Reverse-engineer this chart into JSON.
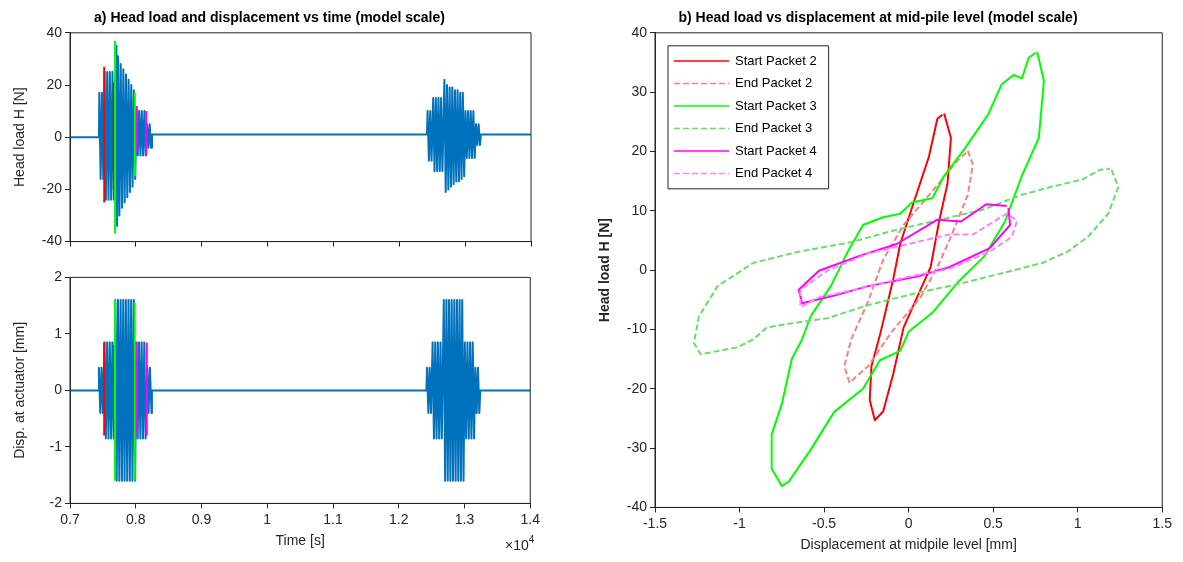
{
  "chart_data": [
    {
      "type": "line",
      "title": "a) Head load and displacement vs time (model scale)",
      "ylabel": "Head load H [N]",
      "xlim": [
        0.7,
        1.4
      ],
      "xticks": [
        0.7,
        0.8,
        0.9,
        1,
        1.1,
        1.2,
        1.3,
        1.4
      ],
      "ylim": [
        -40,
        40
      ],
      "yticks": [
        -40,
        -20,
        0,
        20,
        40
      ],
      "tick_labels": "y",
      "marker": "none",
      "legend": false,
      "series": [
        {
          "color": "#0072bd",
          "x": [
            0.7,
            0.744,
            0.7445,
            0.7465,
            0.7485,
            0.7505,
            0.7525,
            0.7545,
            0.7565,
            0.7585,
            0.7605,
            0.7625,
            0.7645,
            0.7665,
            0.7705,
            0.7715,
            0.773,
            0.775,
            0.777,
            0.779,
            0.781,
            0.783,
            0.785,
            0.787,
            0.789,
            0.791,
            0.793,
            0.795,
            0.797,
            0.799,
            0.801,
            0.803,
            0.805,
            0.807,
            0.809,
            0.811,
            0.813,
            0.815,
            0.817,
            0.819,
            0.821,
            0.823,
            0.8245,
            1.242,
            1.243,
            1.245,
            1.247,
            1.249,
            1.2515,
            1.2535,
            1.2555,
            1.2575,
            1.2595,
            1.2615,
            1.2635,
            1.2655,
            1.2685,
            1.2705,
            1.2725,
            1.2745,
            1.2765,
            1.2785,
            1.2805,
            1.2825,
            1.2845,
            1.2865,
            1.2885,
            1.2905,
            1.2925,
            1.2945,
            1.2965,
            1.2985,
            1.3005,
            1.3025,
            1.3045,
            1.3065,
            1.3085,
            1.3105,
            1.3125,
            1.3145,
            1.3165,
            1.3185,
            1.3205,
            1.3225,
            1.324,
            1.4
          ],
          "values": [
            0,
            0,
            17,
            -16,
            17,
            -16,
            25,
            -24,
            25,
            -24,
            25,
            -24,
            25,
            -24,
            35,
            -34,
            31,
            -30,
            28,
            -27,
            26,
            -25,
            24,
            -23,
            22,
            -21,
            20,
            -19,
            18,
            -16,
            10,
            -7,
            10,
            -7,
            10,
            -7,
            10,
            -7,
            5,
            -4,
            5,
            -4,
            1,
            1,
            10,
            -9,
            10,
            -9,
            15,
            -13,
            15,
            -13,
            15,
            -13,
            15,
            -13,
            22,
            -21,
            20,
            -20,
            19,
            -19,
            19,
            -18,
            18,
            -17,
            18,
            -17,
            17,
            -16,
            17,
            -15,
            10,
            -8,
            10,
            -8,
            10,
            -8,
            10,
            -8,
            5,
            -3,
            5,
            -3,
            1,
            1
          ]
        },
        {
          "color": "#ff0000",
          "x": [
            0.752,
            0.752,
            0.76,
            0.7665,
            0.7665
          ],
          "values": [
            -25,
            27,
            null,
            -20,
            21
          ]
        },
        {
          "color": "#00ff00",
          "x": [
            0.7684,
            0.7684,
            0.784,
            0.7985,
            0.7985
          ],
          "values": [
            -37,
            37,
            null,
            -15,
            17
          ]
        },
        {
          "color": "#ff00ff",
          "x": [
            0.8015,
            0.8015,
            0.808,
            0.8158,
            0.8158
          ],
          "values": [
            -6,
            12,
            null,
            -7,
            10
          ]
        }
      ]
    },
    {
      "type": "line",
      "ylabel": "Disp. at actuator [mm]",
      "xlabel": "Time [s]",
      "annotations": [
        "×10$^{4}$"
      ],
      "xlim": [
        0.7,
        1.4
      ],
      "xticks": [
        0.7,
        0.8,
        0.9,
        1,
        1.1,
        1.2,
        1.3,
        1.4
      ],
      "ylim": [
        -2,
        2
      ],
      "yticks": [
        -2,
        -1,
        0,
        1,
        2
      ],
      "marker": "none",
      "legend": false,
      "series": [
        {
          "color": "#0072bd",
          "x": [
            0.7,
            0.7435,
            0.744,
            0.746,
            0.748,
            0.75,
            0.7525,
            0.7545,
            0.7565,
            0.7585,
            0.7605,
            0.7625,
            0.7645,
            0.7665,
            0.769,
            0.771,
            0.773,
            0.775,
            0.777,
            0.779,
            0.781,
            0.783,
            0.785,
            0.787,
            0.789,
            0.791,
            0.793,
            0.795,
            0.797,
            0.799,
            0.801,
            0.803,
            0.805,
            0.807,
            0.809,
            0.811,
            0.813,
            0.815,
            0.8175,
            0.8195,
            0.8215,
            0.824,
            0.8246,
            1.242,
            1.243,
            1.245,
            1.247,
            1.249,
            1.2515,
            1.2535,
            1.2555,
            1.2575,
            1.2595,
            1.2615,
            1.2635,
            1.2655,
            1.2685,
            1.2705,
            1.2725,
            1.2745,
            1.2765,
            1.2785,
            1.2805,
            1.2825,
            1.2845,
            1.2865,
            1.2885,
            1.2905,
            1.2925,
            1.2945,
            1.2965,
            1.2985,
            1.3005,
            1.3025,
            1.3045,
            1.3065,
            1.3085,
            1.3105,
            1.3125,
            1.3145,
            1.3165,
            1.3185,
            1.3205,
            1.3225,
            1.324,
            1.4
          ],
          "values": [
            0,
            0,
            0.4,
            -0.4,
            0.4,
            -0.4,
            0.85,
            -0.85,
            0.85,
            -0.85,
            0.85,
            -0.85,
            0.85,
            -0.85,
            1.6,
            -1.6,
            1.6,
            -1.6,
            1.6,
            -1.6,
            1.6,
            -1.6,
            1.6,
            -1.6,
            1.6,
            -1.6,
            1.6,
            -1.6,
            1.6,
            -1.6,
            0.85,
            -0.85,
            0.85,
            -0.85,
            0.85,
            -0.85,
            0.85,
            -0.85,
            0.4,
            -0.4,
            0.4,
            -0.4,
            0,
            0,
            0.4,
            -0.4,
            0.4,
            -0.4,
            0.85,
            -0.85,
            0.85,
            -0.85,
            0.85,
            -0.85,
            0.85,
            -0.85,
            1.6,
            -1.6,
            1.6,
            -1.6,
            1.6,
            -1.6,
            1.6,
            -1.6,
            1.6,
            -1.6,
            1.6,
            -1.6,
            1.6,
            -1.6,
            1.6,
            -1.6,
            0.85,
            -0.85,
            0.85,
            -0.85,
            0.85,
            -0.85,
            0.85,
            -0.85,
            0.4,
            -0.4,
            0.4,
            -0.4,
            0,
            0
          ]
        },
        {
          "color": "#ff0000",
          "x": [
            0.752,
            0.752,
            0.76,
            0.7672,
            0.7672
          ],
          "values": [
            -0.8,
            0.85,
            null,
            -0.85,
            0.8
          ]
        },
        {
          "color": "#00ff00",
          "x": [
            0.7684,
            0.7684,
            0.784,
            0.7985,
            0.7985
          ],
          "values": [
            -1.6,
            1.6,
            null,
            -1.6,
            1.55
          ]
        },
        {
          "color": "#ff00ff",
          "x": [
            0.8015,
            0.8015,
            0.8085,
            0.8168,
            0.8168
          ],
          "values": [
            -0.8,
            0.85,
            null,
            -0.8,
            0.85
          ]
        }
      ]
    },
    {
      "type": "line",
      "title": "b) Head load vs displacement at mid-pile level (model scale)",
      "xlabel": "Displacement at midpile level [mm]",
      "ylabel": "Head load H [N]",
      "xlim": [
        -1.5,
        1.5
      ],
      "xticks": [
        -1.5,
        -1,
        -0.5,
        0,
        0.5,
        1,
        1.5
      ],
      "ylim": [
        -40,
        40
      ],
      "yticks": [
        -40,
        -30,
        -20,
        -10,
        0,
        10,
        20,
        30,
        40
      ],
      "marker": "none",
      "legend": "top left",
      "series": [
        {
          "name": "Start Packet 2",
          "color": "#ff0000",
          "line_style": "solid",
          "x": [
            0.21,
            0.25,
            0.23,
            0.18,
            0.13,
            0.07,
            -0.03,
            -0.09,
            -0.15,
            -0.2,
            -0.23,
            -0.22,
            -0.17,
            -0.09,
            -0.05,
            0.03,
            0.12,
            0.17,
            0.2
          ],
          "values": [
            26.4,
            22.3,
            14.6,
            8.2,
            0.5,
            -3.3,
            -9.7,
            -17.4,
            -23.8,
            -25.3,
            -21.9,
            -16.2,
            -11,
            -1.4,
            4.4,
            11.4,
            19.1,
            25.5,
            26.2
          ]
        },
        {
          "name": "End Packet 2",
          "color": "#ff8080",
          "line_style": "dashed",
          "x": [
            0.35,
            0.38,
            0.35,
            0.25,
            0.17,
            0.07,
            -0.1,
            -0.24,
            -0.35,
            -0.38,
            -0.34,
            -0.24,
            -0.15,
            -0.03,
            0.14,
            0.29,
            0.34
          ],
          "values": [
            20.1,
            17.8,
            12.7,
            5.6,
            0.5,
            -4.6,
            -10.4,
            -16.2,
            -19,
            -16.2,
            -11.7,
            -5.3,
            1.8,
            7.6,
            13.3,
            18.5,
            19.8
          ]
        },
        {
          "name": "Start Packet 3",
          "color": "#00ff00",
          "line_style": "solid",
          "x": [
            0.76,
            0.8,
            0.77,
            0.67,
            0.57,
            0.45,
            0.29,
            0.14,
            0,
            -0.05,
            -0.17,
            -0.27,
            -0.44,
            -0.58,
            -0.71,
            -0.75,
            -0.81,
            -0.81,
            -0.75,
            -0.69,
            -0.63,
            -0.58,
            -0.46,
            -0.36,
            -0.27,
            -0.15,
            -0.05,
            0.02,
            0.14,
            0.21,
            0.33,
            0.47,
            0.55,
            0.62,
            0.67,
            0.71,
            0.75
          ],
          "values": [
            36.8,
            31.9,
            22.3,
            15.9,
            8.2,
            2.4,
            -2.1,
            -7.2,
            -10.4,
            -13.6,
            -15.2,
            -20,
            -23.9,
            -30.3,
            -35.7,
            -36.4,
            -33.5,
            -27.7,
            -22.6,
            -14.9,
            -11.7,
            -7.8,
            -2.7,
            3.1,
            7.6,
            8.9,
            9.5,
            11.4,
            12.1,
            15.9,
            20.4,
            26.2,
            31.3,
            32.9,
            32.3,
            35.8,
            36.6
          ]
        },
        {
          "name": "End Packet 3",
          "color": "#66e066",
          "line_style": "dashed",
          "x": [
            1.2,
            1.24,
            1.18,
            1.06,
            0.94,
            0.79,
            0.57,
            0.29,
            0.07,
            -0.24,
            -0.48,
            -0.72,
            -0.84,
            -0.92,
            -1.01,
            -1.23,
            -1.27,
            -1.24,
            -1.13,
            -0.92,
            -0.65,
            -0.34,
            -0.1,
            0.14,
            0.43,
            0.67,
            0.84,
            1.03,
            1.13,
            1.19
          ],
          "values": [
            16.9,
            14,
            9.5,
            5.6,
            3.1,
            1.2,
            -0.4,
            -2.4,
            -3.7,
            -5.9,
            -8.1,
            -9.1,
            -9.7,
            -11.7,
            -13,
            -14.2,
            -12.3,
            -7.8,
            -2.7,
            1.2,
            3.1,
            4.7,
            6.6,
            8.2,
            10.1,
            12.7,
            14,
            15.3,
            16.9,
            17.1
          ]
        },
        {
          "name": "Start Packet 4",
          "color": "#ff00ff",
          "line_style": "solid",
          "x": [
            0.59,
            0.6,
            0.48,
            0.24,
            0.05,
            -0.24,
            -0.44,
            -0.63,
            -0.65,
            -0.53,
            -0.29,
            -0.07,
            0.17,
            0.31,
            0.46,
            0.58
          ],
          "values": [
            10.5,
            7.6,
            3.7,
            0.5,
            -1.1,
            -2.7,
            -4.3,
            -5.6,
            -3.3,
            -0.1,
            2.4,
            4.4,
            8.5,
            8.2,
            11.1,
            10.8
          ]
        },
        {
          "name": "End Packet 4",
          "color": "#ff80ff",
          "line_style": "dashed",
          "x": [
            0.64,
            0.61,
            0.48,
            0.24,
            0,
            -0.27,
            -0.53,
            -0.64,
            -0.64,
            -0.48,
            -0.24,
            0,
            0.24,
            0.38,
            0.58,
            0.63
          ],
          "values": [
            8.2,
            5.6,
            3.1,
            0.2,
            -1.1,
            -3,
            -4.6,
            -6.2,
            -3.3,
            -0.1,
            2.8,
            4.4,
            6,
            6,
            9.5,
            8.6
          ]
        }
      ]
    }
  ]
}
